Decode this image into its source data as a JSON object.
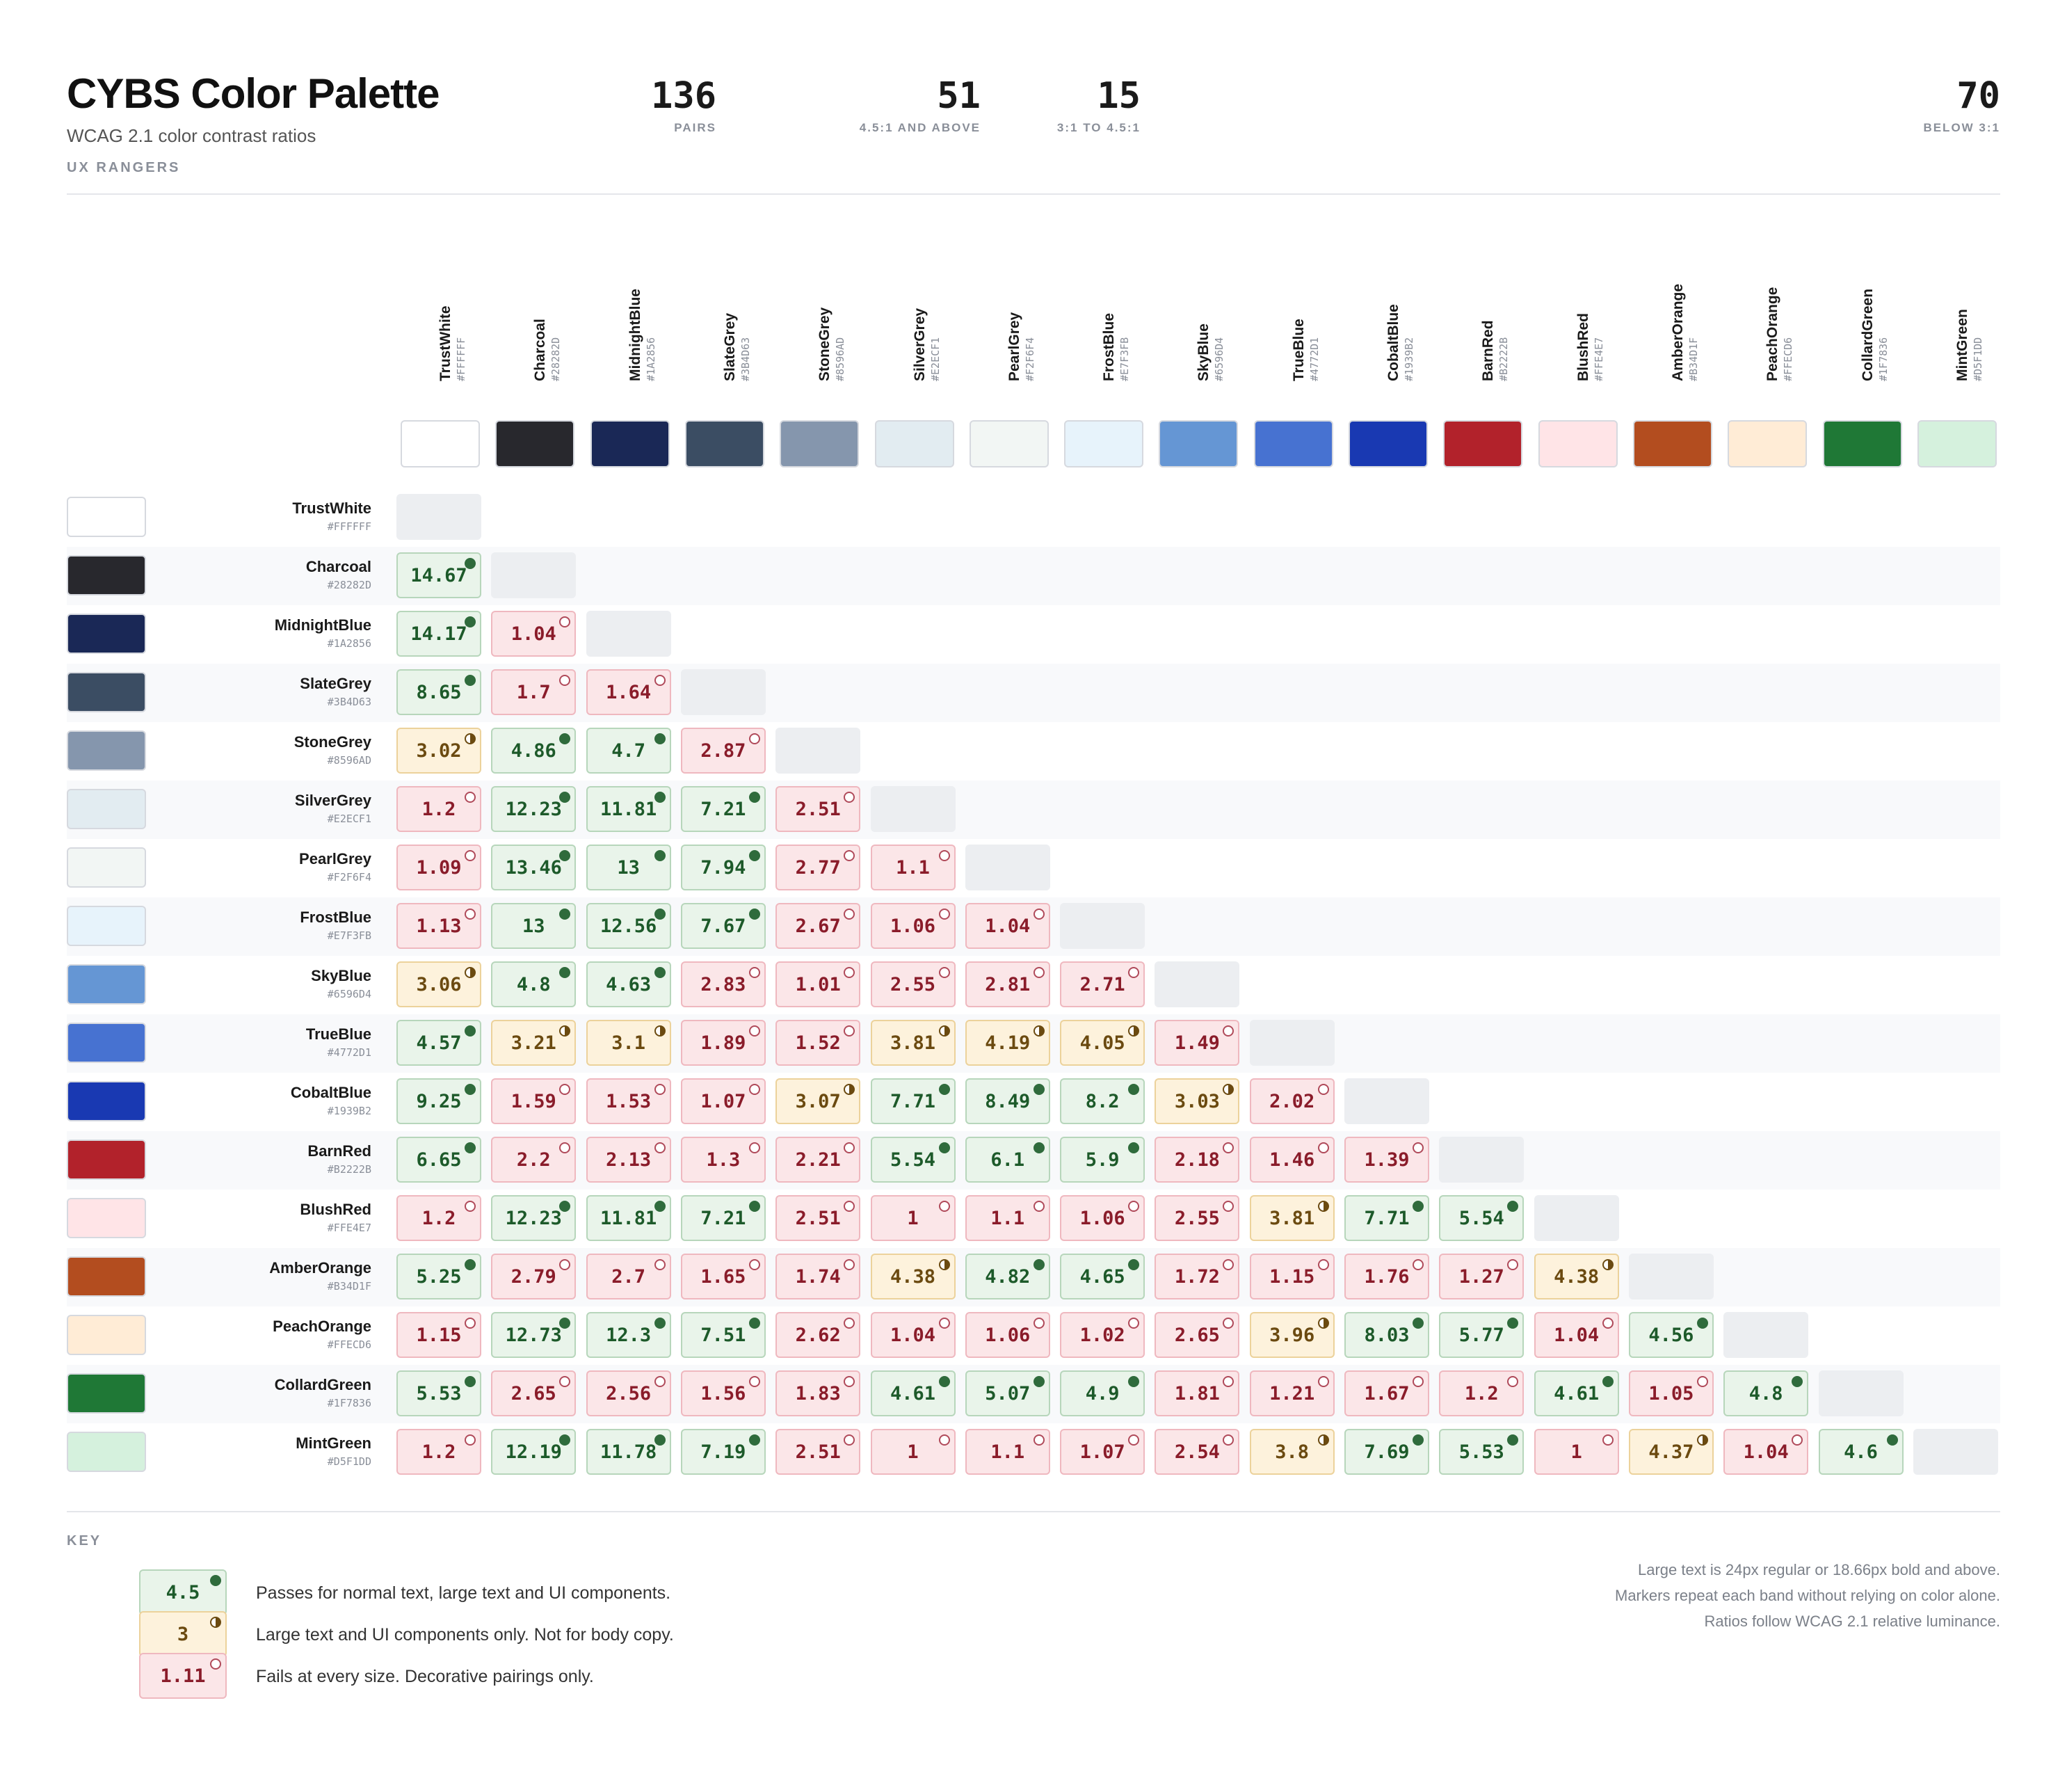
{
  "header": {
    "title": "CYBS Color Palette",
    "subtitle": "WCAG 2.1 color contrast ratios",
    "org": "UX RANGERS"
  },
  "stats": [
    {
      "value": "136",
      "label": "PAIRS"
    },
    {
      "value": "51",
      "label": "4.5:1 AND ABOVE"
    },
    {
      "value": "15",
      "label": "3:1 TO 4.5:1"
    },
    {
      "value": "70",
      "label": "BELOW 3:1"
    }
  ],
  "chart_data": {
    "type": "heatmap",
    "thresholds": {
      "pass": 4.5,
      "large": 3
    },
    "colors": [
      {
        "name": "TrustWhite",
        "hex": "#FFFFFF"
      },
      {
        "name": "Charcoal",
        "hex": "#28282D"
      },
      {
        "name": "MidnightBlue",
        "hex": "#1A2856"
      },
      {
        "name": "SlateGrey",
        "hex": "#3B4D63"
      },
      {
        "name": "StoneGrey",
        "hex": "#8596AD"
      },
      {
        "name": "SilverGrey",
        "hex": "#E2ECF1"
      },
      {
        "name": "PearlGrey",
        "hex": "#F2F6F4"
      },
      {
        "name": "FrostBlue",
        "hex": "#E7F3FB"
      },
      {
        "name": "SkyBlue",
        "hex": "#6596D4"
      },
      {
        "name": "TrueBlue",
        "hex": "#4772D1"
      },
      {
        "name": "CobaltBlue",
        "hex": "#1939B2"
      },
      {
        "name": "BarnRed",
        "hex": "#B2222B"
      },
      {
        "name": "BlushRed",
        "hex": "#FFE4E7"
      },
      {
        "name": "AmberOrange",
        "hex": "#B34D1F"
      },
      {
        "name": "PeachOrange",
        "hex": "#FFECD6"
      },
      {
        "name": "CollardGreen",
        "hex": "#1F7836"
      },
      {
        "name": "MintGreen",
        "hex": "#D5F1DD"
      }
    ],
    "ratios": [
      [],
      [
        "14.67"
      ],
      [
        "14.17",
        "1.04"
      ],
      [
        "8.65",
        "1.7",
        "1.64"
      ],
      [
        "3.02",
        "4.86",
        "4.7",
        "2.87"
      ],
      [
        "1.2",
        "12.23",
        "11.81",
        "7.21",
        "2.51"
      ],
      [
        "1.09",
        "13.46",
        "13",
        "7.94",
        "2.77",
        "1.1"
      ],
      [
        "1.13",
        "13",
        "12.56",
        "7.67",
        "2.67",
        "1.06",
        "1.04"
      ],
      [
        "3.06",
        "4.8",
        "4.63",
        "2.83",
        "1.01",
        "2.55",
        "2.81",
        "2.71"
      ],
      [
        "4.57",
        "3.21",
        "3.1",
        "1.89",
        "1.52",
        "3.81",
        "4.19",
        "4.05",
        "1.49"
      ],
      [
        "9.25",
        "1.59",
        "1.53",
        "1.07",
        "3.07",
        "7.71",
        "8.49",
        "8.2",
        "3.03",
        "2.02"
      ],
      [
        "6.65",
        "2.2",
        "2.13",
        "1.3",
        "2.21",
        "5.54",
        "6.1",
        "5.9",
        "2.18",
        "1.46",
        "1.39"
      ],
      [
        "1.2",
        "12.23",
        "11.81",
        "7.21",
        "2.51",
        "1",
        "1.1",
        "1.06",
        "2.55",
        "3.81",
        "7.71",
        "5.54"
      ],
      [
        "5.25",
        "2.79",
        "2.7",
        "1.65",
        "1.74",
        "4.38",
        "4.82",
        "4.65",
        "1.72",
        "1.15",
        "1.76",
        "1.27",
        "4.38"
      ],
      [
        "1.15",
        "12.73",
        "12.3",
        "7.51",
        "2.62",
        "1.04",
        "1.06",
        "1.02",
        "2.65",
        "3.96",
        "8.03",
        "5.77",
        "1.04",
        "4.56"
      ],
      [
        "5.53",
        "2.65",
        "2.56",
        "1.56",
        "1.83",
        "4.61",
        "5.07",
        "4.9",
        "1.81",
        "1.21",
        "1.67",
        "1.2",
        "4.61",
        "1.05",
        "4.8"
      ],
      [
        "1.2",
        "12.19",
        "11.78",
        "7.19",
        "2.51",
        "1",
        "1.1",
        "1.07",
        "2.54",
        "3.8",
        "7.69",
        "5.53",
        "1",
        "4.37",
        "1.04",
        "4.6"
      ]
    ]
  },
  "key": {
    "title": "KEY",
    "items": [
      {
        "value": "4.5",
        "level": "pass",
        "text": "Passes for normal text, large text and UI components."
      },
      {
        "value": "3",
        "level": "large",
        "text": "Large text and UI components only. Not for body copy."
      },
      {
        "value": "1.11",
        "level": "fail",
        "text": "Fails at every size. Decorative pairings only."
      }
    ],
    "notes": [
      "Large text is 24px regular or 18.66px bold and above.",
      "Markers repeat each band without relying on color alone.",
      "Ratios follow WCAG 2.1 relative luminance."
    ]
  }
}
